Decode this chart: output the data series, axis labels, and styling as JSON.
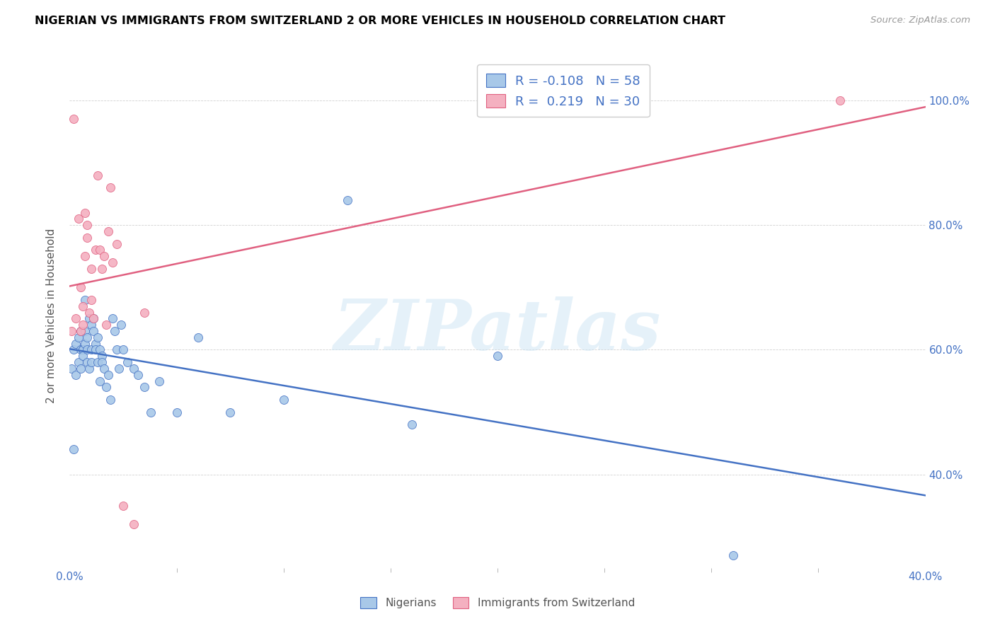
{
  "title": "NIGERIAN VS IMMIGRANTS FROM SWITZERLAND 2 OR MORE VEHICLES IN HOUSEHOLD CORRELATION CHART",
  "source": "Source: ZipAtlas.com",
  "ylabel": "2 or more Vehicles in Household",
  "xlabel_nigerians": "Nigerians",
  "xlabel_swiss": "Immigrants from Switzerland",
  "xmin": 0.0,
  "xmax": 0.4,
  "ymin": 0.25,
  "ymax": 1.06,
  "r_nigerian": -0.108,
  "n_nigerian": 58,
  "r_swiss": 0.219,
  "n_swiss": 30,
  "color_nigerian": "#a8c8e8",
  "color_swiss": "#f4b0c0",
  "line_color_nigerian": "#4472c4",
  "line_color_swiss": "#e06080",
  "watermark": "ZIPatlas",
  "nigerian_x": [
    0.001,
    0.002,
    0.002,
    0.003,
    0.003,
    0.004,
    0.004,
    0.005,
    0.005,
    0.005,
    0.006,
    0.006,
    0.006,
    0.007,
    0.007,
    0.007,
    0.008,
    0.008,
    0.008,
    0.009,
    0.009,
    0.01,
    0.01,
    0.01,
    0.011,
    0.011,
    0.012,
    0.012,
    0.013,
    0.013,
    0.014,
    0.014,
    0.015,
    0.015,
    0.016,
    0.017,
    0.018,
    0.019,
    0.02,
    0.021,
    0.022,
    0.023,
    0.024,
    0.025,
    0.027,
    0.03,
    0.032,
    0.035,
    0.038,
    0.042,
    0.05,
    0.06,
    0.075,
    0.1,
    0.13,
    0.16,
    0.2,
    0.31
  ],
  "nigerian_y": [
    0.57,
    0.44,
    0.6,
    0.61,
    0.56,
    0.62,
    0.58,
    0.6,
    0.63,
    0.57,
    0.6,
    0.6,
    0.59,
    0.68,
    0.61,
    0.63,
    0.6,
    0.58,
    0.62,
    0.65,
    0.57,
    0.6,
    0.64,
    0.58,
    0.63,
    0.65,
    0.61,
    0.6,
    0.62,
    0.58,
    0.6,
    0.55,
    0.59,
    0.58,
    0.57,
    0.54,
    0.56,
    0.52,
    0.65,
    0.63,
    0.6,
    0.57,
    0.64,
    0.6,
    0.58,
    0.57,
    0.56,
    0.54,
    0.5,
    0.55,
    0.5,
    0.62,
    0.5,
    0.52,
    0.84,
    0.48,
    0.59,
    0.27
  ],
  "swiss_x": [
    0.001,
    0.002,
    0.003,
    0.004,
    0.005,
    0.005,
    0.006,
    0.006,
    0.007,
    0.007,
    0.008,
    0.008,
    0.009,
    0.01,
    0.01,
    0.011,
    0.012,
    0.013,
    0.014,
    0.015,
    0.016,
    0.017,
    0.018,
    0.019,
    0.02,
    0.022,
    0.025,
    0.03,
    0.035,
    0.36
  ],
  "swiss_y": [
    0.63,
    0.97,
    0.65,
    0.81,
    0.63,
    0.7,
    0.64,
    0.67,
    0.82,
    0.75,
    0.78,
    0.8,
    0.66,
    0.68,
    0.73,
    0.65,
    0.76,
    0.88,
    0.76,
    0.73,
    0.75,
    0.64,
    0.79,
    0.86,
    0.74,
    0.77,
    0.35,
    0.32,
    0.66,
    1.0
  ]
}
